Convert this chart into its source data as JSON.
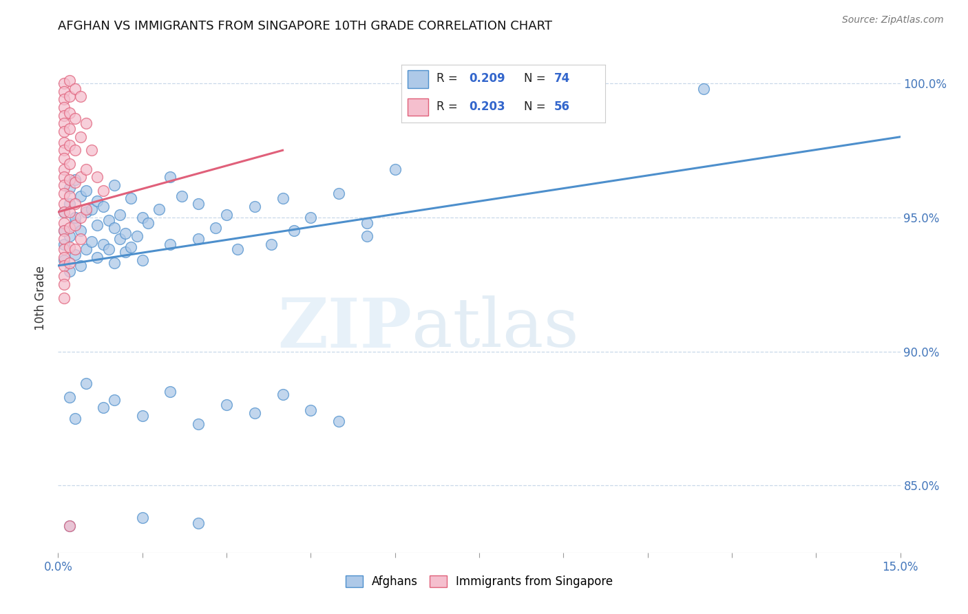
{
  "title": "AFGHAN VS IMMIGRANTS FROM SINGAPORE 10TH GRADE CORRELATION CHART",
  "source": "Source: ZipAtlas.com",
  "ylabel": "10th Grade",
  "legend_label_blue": "Afghans",
  "legend_label_pink": "Immigrants from Singapore",
  "blue_color": "#aec9e8",
  "pink_color": "#f5bfce",
  "blue_line_color": "#4d8fcc",
  "pink_line_color": "#e0607a",
  "watermark_zip": "ZIP",
  "watermark_atlas": "atlas",
  "xlim": [
    0.0,
    0.15
  ],
  "ylim": [
    82.5,
    101.5
  ],
  "ytick_vals": [
    85.0,
    90.0,
    95.0,
    100.0
  ],
  "blue_line_x": [
    0.0,
    0.15
  ],
  "blue_line_y": [
    93.2,
    98.0
  ],
  "pink_line_x": [
    0.0,
    0.04
  ],
  "pink_line_y": [
    95.2,
    97.5
  ],
  "blue_scatter": [
    [
      0.001,
      93.4
    ],
    [
      0.001,
      94.0
    ],
    [
      0.001,
      94.5
    ],
    [
      0.001,
      95.2
    ],
    [
      0.002,
      93.0
    ],
    [
      0.002,
      94.3
    ],
    [
      0.002,
      95.5
    ],
    [
      0.002,
      96.1
    ],
    [
      0.003,
      93.6
    ],
    [
      0.003,
      94.8
    ],
    [
      0.003,
      95.0
    ],
    [
      0.003,
      96.4
    ],
    [
      0.004,
      93.2
    ],
    [
      0.004,
      94.5
    ],
    [
      0.004,
      95.8
    ],
    [
      0.005,
      93.8
    ],
    [
      0.005,
      95.2
    ],
    [
      0.005,
      96.0
    ],
    [
      0.006,
      94.1
    ],
    [
      0.006,
      95.3
    ],
    [
      0.007,
      93.5
    ],
    [
      0.007,
      94.7
    ],
    [
      0.007,
      95.6
    ],
    [
      0.008,
      94.0
    ],
    [
      0.008,
      95.4
    ],
    [
      0.009,
      93.8
    ],
    [
      0.009,
      94.9
    ],
    [
      0.01,
      93.3
    ],
    [
      0.01,
      94.6
    ],
    [
      0.01,
      96.2
    ],
    [
      0.011,
      94.2
    ],
    [
      0.011,
      95.1
    ],
    [
      0.012,
      93.7
    ],
    [
      0.012,
      94.4
    ],
    [
      0.013,
      93.9
    ],
    [
      0.013,
      95.7
    ],
    [
      0.014,
      94.3
    ],
    [
      0.015,
      93.4
    ],
    [
      0.015,
      95.0
    ],
    [
      0.016,
      94.8
    ],
    [
      0.018,
      95.3
    ],
    [
      0.02,
      94.0
    ],
    [
      0.02,
      96.5
    ],
    [
      0.022,
      95.8
    ],
    [
      0.025,
      94.2
    ],
    [
      0.025,
      95.5
    ],
    [
      0.028,
      94.6
    ],
    [
      0.03,
      95.1
    ],
    [
      0.032,
      93.8
    ],
    [
      0.035,
      95.4
    ],
    [
      0.038,
      94.0
    ],
    [
      0.04,
      95.7
    ],
    [
      0.042,
      94.5
    ],
    [
      0.045,
      95.0
    ],
    [
      0.05,
      95.9
    ],
    [
      0.055,
      94.3
    ],
    [
      0.06,
      96.8
    ],
    [
      0.002,
      88.3
    ],
    [
      0.003,
      87.5
    ],
    [
      0.005,
      88.8
    ],
    [
      0.008,
      87.9
    ],
    [
      0.01,
      88.2
    ],
    [
      0.015,
      87.6
    ],
    [
      0.02,
      88.5
    ],
    [
      0.025,
      87.3
    ],
    [
      0.03,
      88.0
    ],
    [
      0.035,
      87.7
    ],
    [
      0.04,
      88.4
    ],
    [
      0.045,
      87.8
    ],
    [
      0.05,
      87.4
    ],
    [
      0.002,
      83.5
    ],
    [
      0.015,
      83.8
    ],
    [
      0.025,
      83.6
    ],
    [
      0.115,
      99.8
    ],
    [
      0.055,
      94.8
    ]
  ],
  "pink_scatter": [
    [
      0.001,
      100.0
    ],
    [
      0.001,
      99.7
    ],
    [
      0.001,
      99.4
    ],
    [
      0.001,
      99.1
    ],
    [
      0.001,
      98.8
    ],
    [
      0.001,
      98.5
    ],
    [
      0.001,
      98.2
    ],
    [
      0.001,
      97.8
    ],
    [
      0.001,
      97.5
    ],
    [
      0.001,
      97.2
    ],
    [
      0.001,
      96.8
    ],
    [
      0.001,
      96.5
    ],
    [
      0.001,
      96.2
    ],
    [
      0.001,
      95.9
    ],
    [
      0.001,
      95.5
    ],
    [
      0.001,
      95.2
    ],
    [
      0.001,
      94.8
    ],
    [
      0.001,
      94.5
    ],
    [
      0.001,
      94.2
    ],
    [
      0.001,
      93.8
    ],
    [
      0.001,
      93.5
    ],
    [
      0.001,
      93.2
    ],
    [
      0.001,
      92.8
    ],
    [
      0.001,
      92.5
    ],
    [
      0.001,
      92.0
    ],
    [
      0.002,
      100.1
    ],
    [
      0.002,
      99.5
    ],
    [
      0.002,
      98.9
    ],
    [
      0.002,
      98.3
    ],
    [
      0.002,
      97.7
    ],
    [
      0.002,
      97.0
    ],
    [
      0.002,
      96.4
    ],
    [
      0.002,
      95.8
    ],
    [
      0.002,
      95.2
    ],
    [
      0.002,
      94.6
    ],
    [
      0.002,
      93.9
    ],
    [
      0.002,
      93.3
    ],
    [
      0.003,
      99.8
    ],
    [
      0.003,
      98.7
    ],
    [
      0.003,
      97.5
    ],
    [
      0.003,
      96.3
    ],
    [
      0.003,
      95.5
    ],
    [
      0.003,
      94.7
    ],
    [
      0.003,
      93.8
    ],
    [
      0.004,
      99.5
    ],
    [
      0.004,
      98.0
    ],
    [
      0.004,
      96.5
    ],
    [
      0.004,
      95.0
    ],
    [
      0.004,
      94.2
    ],
    [
      0.005,
      98.5
    ],
    [
      0.005,
      96.8
    ],
    [
      0.005,
      95.3
    ],
    [
      0.006,
      97.5
    ],
    [
      0.007,
      96.5
    ],
    [
      0.008,
      96.0
    ],
    [
      0.002,
      83.5
    ]
  ]
}
